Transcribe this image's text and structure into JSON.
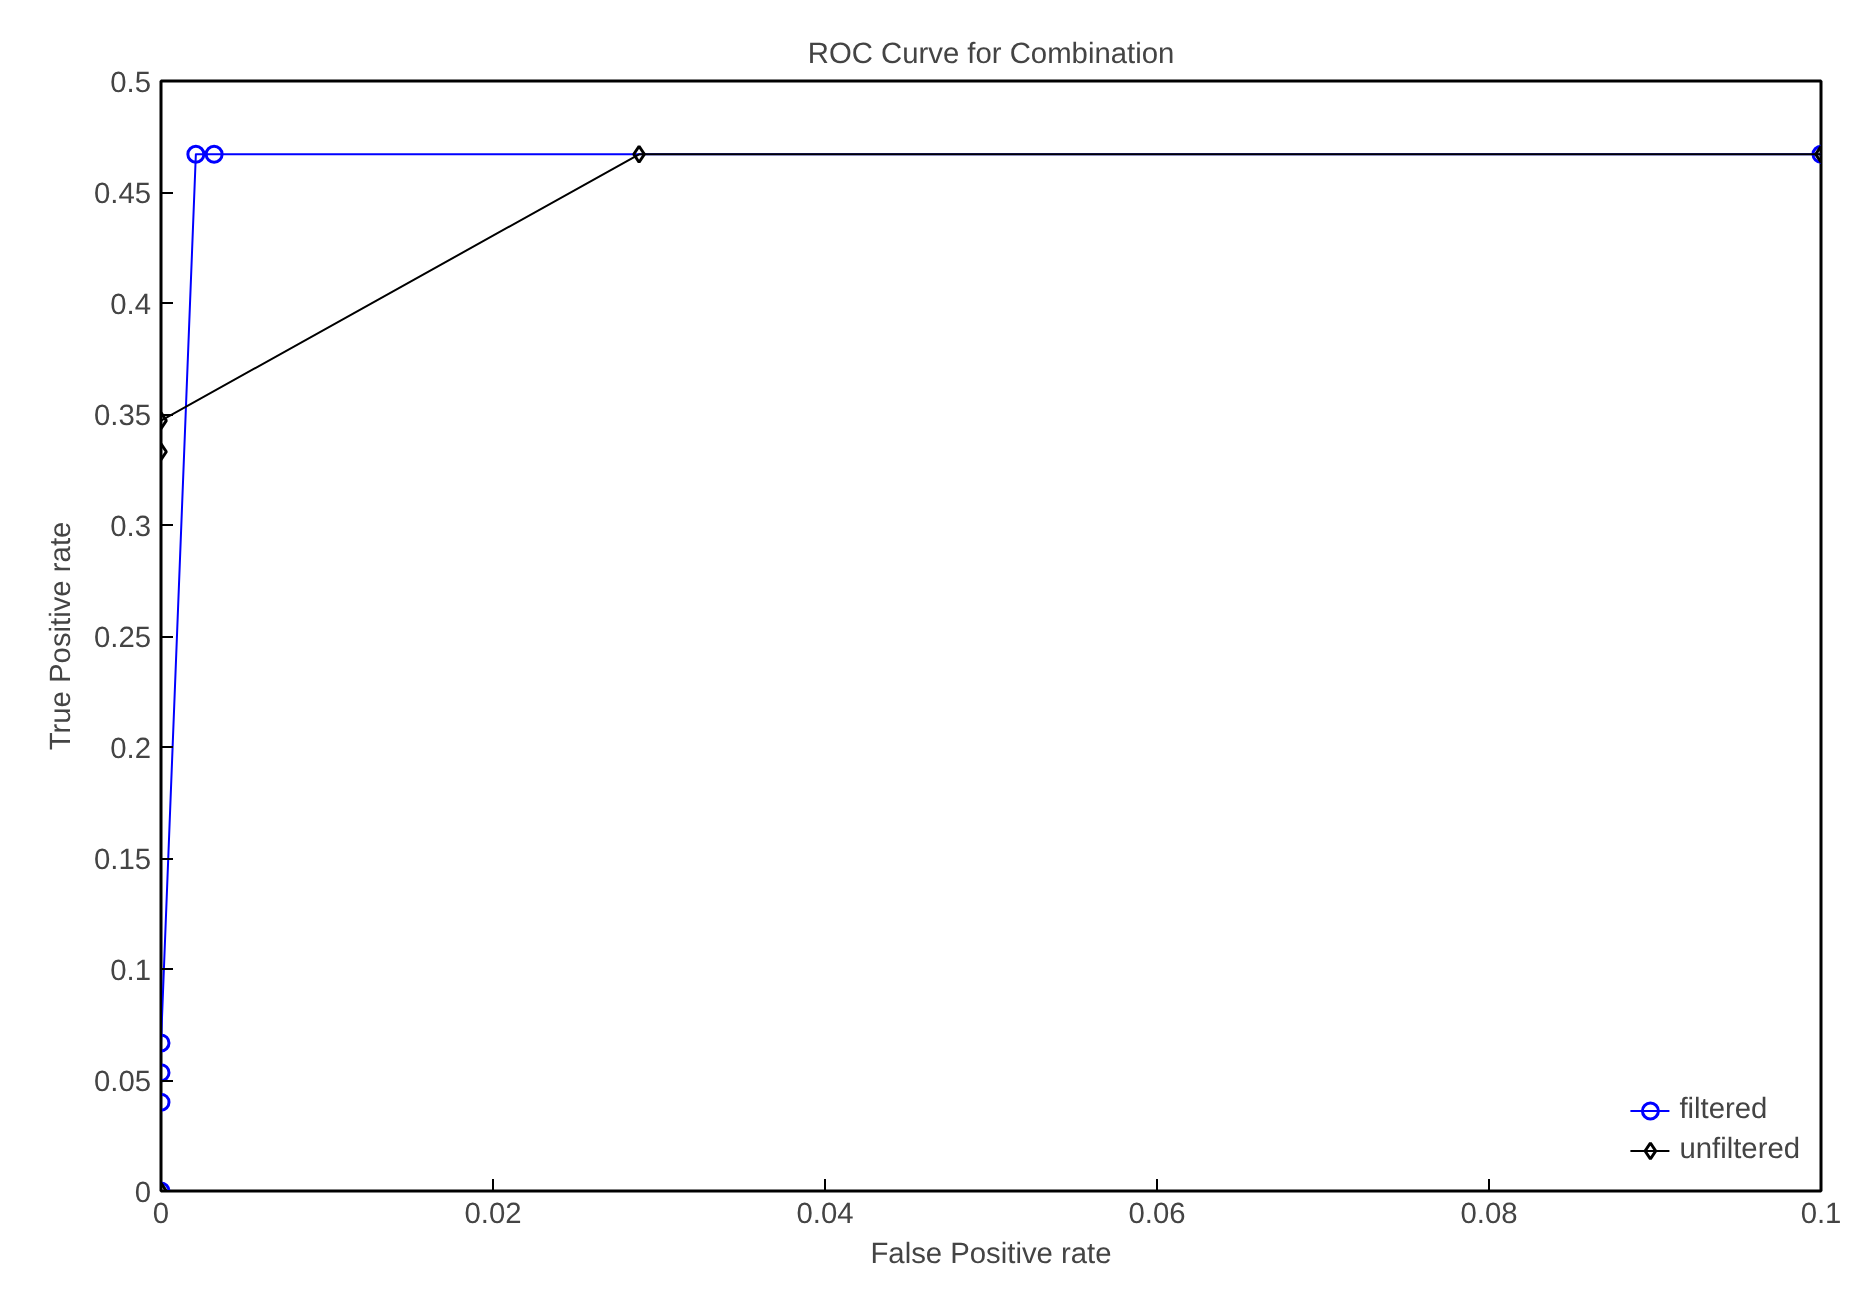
{
  "chart_data": {
    "type": "line",
    "title": "ROC Curve for Combination",
    "xlabel": "False Positive rate",
    "ylabel": "True Positive rate",
    "xlim": [
      0,
      0.1
    ],
    "xticks": [
      0,
      0.02,
      0.04,
      0.06,
      0.08,
      0.1
    ],
    "ylim": [
      0,
      0.5
    ],
    "yticks": [
      0,
      0.05,
      0.1,
      0.15,
      0.2,
      0.25,
      0.3,
      0.35,
      0.4,
      0.45,
      0.5
    ],
    "grid": false,
    "legend": "bottom right",
    "line_style": "solid",
    "series": [
      {
        "name": "filtered",
        "color": "#0000ff",
        "marker": "circle",
        "x": [
          0,
          0,
          0,
          0,
          0.0021,
          0.0032,
          0.1
        ],
        "values": [
          0,
          0.04,
          0.0533,
          0.0667,
          0.467,
          0.467,
          0.467
        ]
      },
      {
        "name": "unfiltered",
        "color": "#000000",
        "marker": "diamond",
        "x": [
          0,
          0,
          0,
          0.0288,
          0.1
        ],
        "values": [
          0,
          0.333,
          0.347,
          0.467,
          0.467
        ]
      }
    ]
  }
}
